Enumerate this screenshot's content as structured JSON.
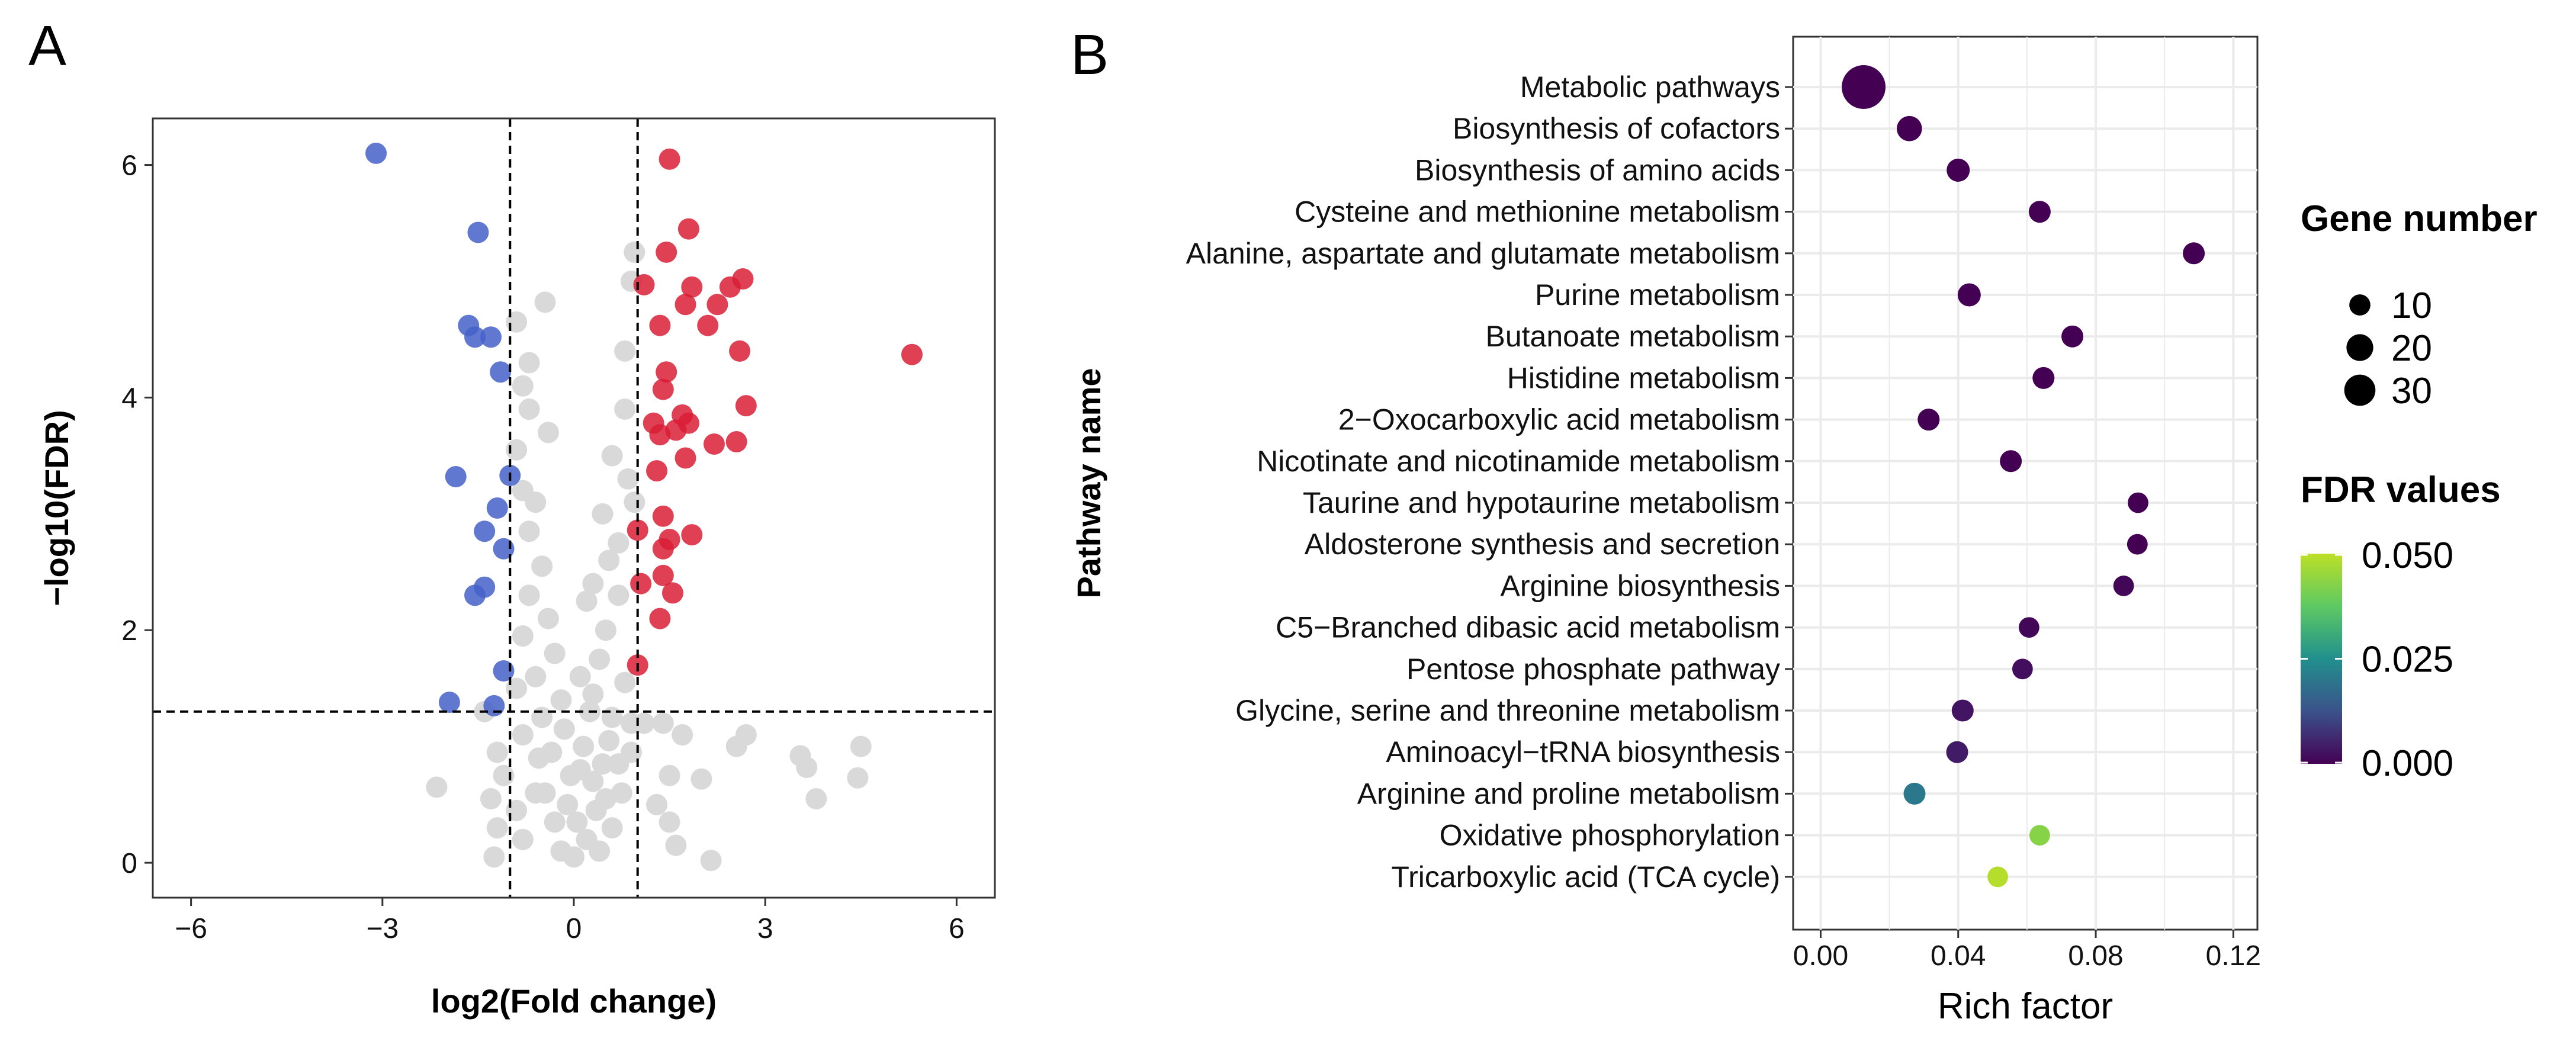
{
  "panels": {
    "a_label": "A",
    "b_label": "B"
  },
  "colors": {
    "up": "#d91e36",
    "down": "#4560c9",
    "ns": "#d9d9d9",
    "grid": "#ebebeb",
    "viridis_low": "#440154",
    "viridis_mid": "#21908d",
    "viridis_high": "#bddf26"
  },
  "chart_data": [
    {
      "type": "scatter",
      "name": "volcano",
      "xlabel": "log2(Fold change)",
      "ylabel": "−log10(FDR)",
      "xlim": [
        -6.6,
        6.6
      ],
      "ylim": [
        -0.3,
        6.4
      ],
      "xticks": [
        -6,
        -3,
        0,
        3,
        6
      ],
      "xtick_labels": [
        "−6",
        "−3",
        "0",
        "3",
        "6"
      ],
      "yticks": [
        0,
        2,
        4,
        6
      ],
      "ytick_labels": [
        "0",
        "2",
        "4",
        "6"
      ],
      "thresholds": {
        "log2fc": [
          -1,
          1
        ],
        "neglog10fdr": 1.3
      },
      "series": [
        {
          "name": "Down",
          "points": [
            [
              -3.1,
              6.1
            ],
            [
              -1.5,
              5.42
            ],
            [
              -1.65,
              4.62
            ],
            [
              -1.55,
              4.52
            ],
            [
              -1.3,
              4.52
            ],
            [
              -1.15,
              4.22
            ],
            [
              -1.85,
              3.32
            ],
            [
              -1.0,
              3.33
            ],
            [
              -1.2,
              3.05
            ],
            [
              -1.4,
              2.85
            ],
            [
              -1.1,
              2.7
            ],
            [
              -1.4,
              2.37
            ],
            [
              -1.55,
              2.3
            ],
            [
              -1.1,
              1.65
            ],
            [
              -1.95,
              1.38
            ],
            [
              -1.25,
              1.35
            ]
          ]
        },
        {
          "name": "Up",
          "points": [
            [
              1.5,
              6.05
            ],
            [
              1.8,
              5.45
            ],
            [
              1.45,
              5.25
            ],
            [
              1.1,
              4.97
            ],
            [
              1.85,
              4.95
            ],
            [
              2.45,
              4.95
            ],
            [
              2.65,
              5.02
            ],
            [
              1.75,
              4.8
            ],
            [
              2.25,
              4.8
            ],
            [
              1.35,
              4.62
            ],
            [
              2.1,
              4.62
            ],
            [
              2.6,
              4.4
            ],
            [
              1.45,
              4.22
            ],
            [
              1.4,
              4.07
            ],
            [
              2.7,
              3.93
            ],
            [
              1.7,
              3.85
            ],
            [
              1.25,
              3.78
            ],
            [
              1.8,
              3.78
            ],
            [
              1.6,
              3.72
            ],
            [
              1.35,
              3.68
            ],
            [
              2.2,
              3.6
            ],
            [
              2.55,
              3.62
            ],
            [
              1.75,
              3.48
            ],
            [
              1.3,
              3.37
            ],
            [
              1.4,
              2.98
            ],
            [
              1.0,
              2.86
            ],
            [
              1.85,
              2.82
            ],
            [
              1.5,
              2.78
            ],
            [
              1.4,
              2.7
            ],
            [
              1.05,
              2.4
            ],
            [
              1.4,
              2.47
            ],
            [
              1.55,
              2.32
            ],
            [
              1.35,
              2.1
            ],
            [
              1.0,
              1.7
            ],
            [
              5.3,
              4.37
            ]
          ]
        },
        {
          "name": "Not significant",
          "points": [
            [
              -0.45,
              4.82
            ],
            [
              -0.9,
              4.65
            ],
            [
              -0.7,
              4.3
            ],
            [
              -0.8,
              4.1
            ],
            [
              -0.7,
              3.9
            ],
            [
              -0.9,
              3.55
            ],
            [
              -0.4,
              3.7
            ],
            [
              -0.8,
              3.2
            ],
            [
              -0.6,
              3.1
            ],
            [
              -0.7,
              2.85
            ],
            [
              -0.5,
              2.55
            ],
            [
              -0.7,
              2.3
            ],
            [
              -0.4,
              2.1
            ],
            [
              -0.8,
              1.95
            ],
            [
              -0.6,
              1.6
            ],
            [
              -0.9,
              1.5
            ],
            [
              -0.3,
              1.8
            ],
            [
              -0.5,
              1.25
            ],
            [
              -1.4,
              1.3
            ],
            [
              -0.8,
              1.1
            ],
            [
              -1.2,
              0.95
            ],
            [
              -1.1,
              0.75
            ],
            [
              -1.3,
              0.55
            ],
            [
              -2.15,
              0.65
            ],
            [
              -1.2,
              0.3
            ],
            [
              -1.25,
              0.05
            ],
            [
              -0.9,
              0.45
            ],
            [
              -0.8,
              0.2
            ],
            [
              -0.6,
              0.6
            ],
            [
              -0.55,
              0.9
            ],
            [
              0.2,
              2.25
            ],
            [
              0.45,
              3.0
            ],
            [
              0.6,
              3.5
            ],
            [
              0.7,
              2.75
            ],
            [
              0.8,
              3.9
            ],
            [
              0.95,
              3.1
            ],
            [
              0.8,
              4.4
            ],
            [
              0.95,
              5.25
            ],
            [
              0.9,
              5.0
            ],
            [
              0.7,
              2.3
            ],
            [
              0.5,
              2.0
            ],
            [
              0.4,
              1.75
            ],
            [
              0.8,
              1.55
            ],
            [
              0.6,
              1.25
            ],
            [
              0.3,
              1.45
            ],
            [
              0.9,
              1.2
            ],
            [
              1.1,
              1.2
            ],
            [
              1.4,
              1.2
            ],
            [
              1.7,
              1.1
            ],
            [
              2.7,
              1.1
            ],
            [
              2.55,
              1.0
            ],
            [
              2.0,
              0.72
            ],
            [
              3.55,
              0.92
            ],
            [
              3.65,
              0.82
            ],
            [
              3.8,
              0.55
            ],
            [
              4.45,
              0.73
            ],
            [
              4.5,
              1.0
            ],
            [
              1.5,
              0.75
            ],
            [
              1.3,
              0.5
            ],
            [
              1.5,
              0.35
            ],
            [
              1.6,
              0.15
            ],
            [
              2.15,
              0.02
            ],
            [
              0.9,
              0.95
            ],
            [
              0.7,
              0.85
            ],
            [
              0.5,
              0.55
            ],
            [
              0.3,
              0.7
            ],
            [
              0.1,
              0.8
            ],
            [
              -0.1,
              0.5
            ],
            [
              -0.3,
              0.35
            ],
            [
              -0.2,
              0.1
            ],
            [
              0.0,
              0.05
            ],
            [
              0.2,
              0.2
            ],
            [
              0.4,
              0.1
            ],
            [
              0.6,
              0.3
            ],
            [
              0.15,
              1.0
            ],
            [
              -0.15,
              1.15
            ],
            [
              0.25,
              1.3
            ],
            [
              -0.35,
              0.95
            ],
            [
              0.55,
              1.05
            ],
            [
              0.05,
              0.35
            ],
            [
              -0.45,
              0.6
            ],
            [
              0.35,
              0.45
            ],
            [
              0.75,
              0.6
            ],
            [
              -0.05,
              0.75
            ],
            [
              0.45,
              0.85
            ],
            [
              0.1,
              1.6
            ],
            [
              -0.2,
              1.4
            ],
            [
              0.3,
              2.4
            ],
            [
              0.55,
              2.6
            ],
            [
              0.85,
              3.3
            ]
          ]
        }
      ]
    },
    {
      "type": "scatter",
      "name": "kegg-enrichment-dotplot",
      "xlabel": "Rich factor",
      "ylabel": "Pathway name",
      "xlim": [
        -0.008,
        0.127
      ],
      "xticks": [
        0.0,
        0.04,
        0.08,
        0.12
      ],
      "xtick_labels": [
        "0.00",
        "0.04",
        "0.08",
        "0.12"
      ],
      "categories": [
        "Metabolic pathways",
        "Biosynthesis of cofactors",
        "Biosynthesis of amino acids",
        "Cysteine and methionine metabolism",
        "Alanine, aspartate and glutamate metabolism",
        "Purine metabolism",
        "Butanoate metabolism",
        "Histidine metabolism",
        "2−Oxocarboxylic acid metabolism",
        "Nicotinate and nicotinamide metabolism",
        "Taurine and hypotaurine metabolism",
        "Aldosterone synthesis and secretion",
        "Arginine biosynthesis",
        "C5−Branched dibasic acid metabolism",
        "Pentose phosphate pathway",
        "Glycine, serine and threonine metabolism",
        "Aminoacyl−tRNA biosynthesis",
        "Arginine and proline metabolism",
        "Oxidative phosphorylation",
        "Tricarboxylic acid (TCA cycle)"
      ],
      "rich_factor": [
        0.0125,
        0.0258,
        0.04,
        0.0637,
        0.1085,
        0.0432,
        0.0732,
        0.0648,
        0.0314,
        0.0553,
        0.0923,
        0.0921,
        0.0881,
        0.0606,
        0.0587,
        0.0413,
        0.0397,
        0.0273,
        0.0637,
        0.0515
      ],
      "gene_number": [
        38,
        8,
        6,
        5,
        5,
        6,
        5,
        5,
        5,
        5,
        4,
        4,
        4,
        4,
        4,
        5,
        5,
        5,
        4,
        4
      ],
      "fdr": [
        0.0,
        0.0,
        0.0,
        0.0,
        0.0,
        0.0,
        0.0,
        0.0,
        0.0,
        0.0,
        0.0,
        0.0,
        0.001,
        0.001,
        0.002,
        0.003,
        0.004,
        0.02,
        0.043,
        0.049
      ],
      "legend": {
        "size_title": "Gene number",
        "size_values": [
          "10",
          "20",
          "30"
        ],
        "color_title": "FDR values",
        "color_ticks": [
          "0.050",
          "0.025",
          "0.000"
        ]
      }
    }
  ]
}
